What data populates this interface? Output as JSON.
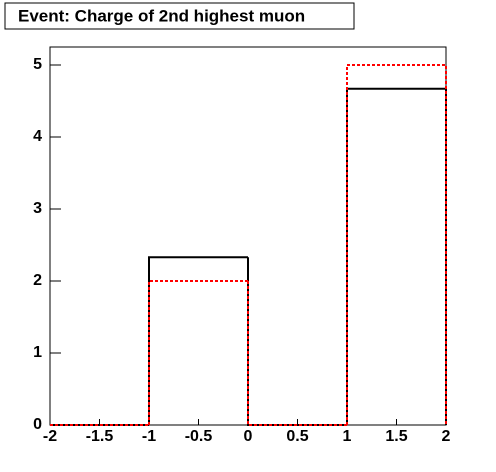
{
  "chart_data": {
    "type": "histogram",
    "title": "Event: Charge of 2nd highest muon",
    "bins": [
      -2,
      -1,
      0,
      1,
      2
    ],
    "series": [
      {
        "color": "#000000",
        "dashed": false,
        "values": [
          0,
          2.33,
          0,
          4.67
        ]
      },
      {
        "color": "#ff0000",
        "dashed": true,
        "values": [
          0,
          2,
          0,
          5
        ]
      }
    ],
    "xlim": [
      -2,
      2
    ],
    "xticks": [
      -2,
      -1.5,
      -1,
      -0.5,
      0,
      0.5,
      1,
      1.5,
      2
    ],
    "ylim": [
      0,
      5.25
    ],
    "yticks": [
      0,
      1,
      2,
      3,
      4,
      5
    ]
  }
}
